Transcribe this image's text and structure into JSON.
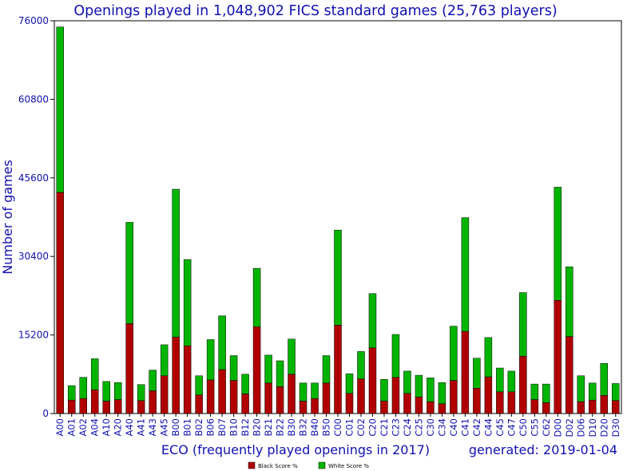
{
  "chart_data": {
    "type": "bar",
    "stacked": true,
    "title": "Openings played in 1,048,902 FICS standard games (25,763 players)",
    "ylabel": "Number of games",
    "xlabel": "ECO (frequently played openings in 2017)",
    "generated": "generated: 2019-01-04",
    "ylim": [
      0,
      76000
    ],
    "yticks": [
      "0",
      "15200",
      "30400",
      "45600",
      "60800",
      "76000"
    ],
    "ytick_values": [
      0,
      15200,
      30400,
      45600,
      60800,
      76000
    ],
    "grid": false,
    "legend_position": "bottom",
    "categories": [
      "A00",
      "A01",
      "A02",
      "A04",
      "A10",
      "A20",
      "A40",
      "A41",
      "A43",
      "A45",
      "B00",
      "B01",
      "B02",
      "B06",
      "B07",
      "B10",
      "B12",
      "B20",
      "B21",
      "B22",
      "B30",
      "B32",
      "B40",
      "B50",
      "C00",
      "C01",
      "C02",
      "C20",
      "C21",
      "C23",
      "C24",
      "C25",
      "C30",
      "C34",
      "C40",
      "C41",
      "C42",
      "C44",
      "C45",
      "C47",
      "C50",
      "C55",
      "C62",
      "D00",
      "D02",
      "D06",
      "D10",
      "D20",
      "D30"
    ],
    "series": [
      {
        "name": "Black Score %",
        "color": "#b00000",
        "values": [
          42800,
          2600,
          2900,
          4600,
          2400,
          2700,
          17400,
          2500,
          4400,
          7300,
          14800,
          13100,
          3600,
          6500,
          8500,
          6400,
          3800,
          16800,
          5900,
          5200,
          7600,
          2400,
          2900,
          5900,
          17100,
          3900,
          6700,
          12700,
          2400,
          7000,
          3900,
          3200,
          2300,
          1900,
          6400,
          15900,
          4900,
          7100,
          4200,
          4200,
          11100,
          2700,
          2100,
          21900,
          14900,
          2300,
          2600,
          3500,
          2500
        ]
      },
      {
        "name": "White Score %",
        "color": "#00b400",
        "values": [
          32000,
          2800,
          4100,
          6000,
          3800,
          3300,
          19600,
          3100,
          4000,
          6000,
          28600,
          16700,
          3700,
          7800,
          10400,
          4800,
          3800,
          11300,
          5400,
          5000,
          6800,
          3500,
          3000,
          5300,
          18400,
          3800,
          5300,
          10500,
          4200,
          8300,
          4300,
          4200,
          4600,
          4100,
          10500,
          22000,
          5800,
          7600,
          4600,
          4000,
          12300,
          3000,
          3600,
          21900,
          13500,
          5000,
          3300,
          6200,
          3300
        ]
      }
    ]
  }
}
